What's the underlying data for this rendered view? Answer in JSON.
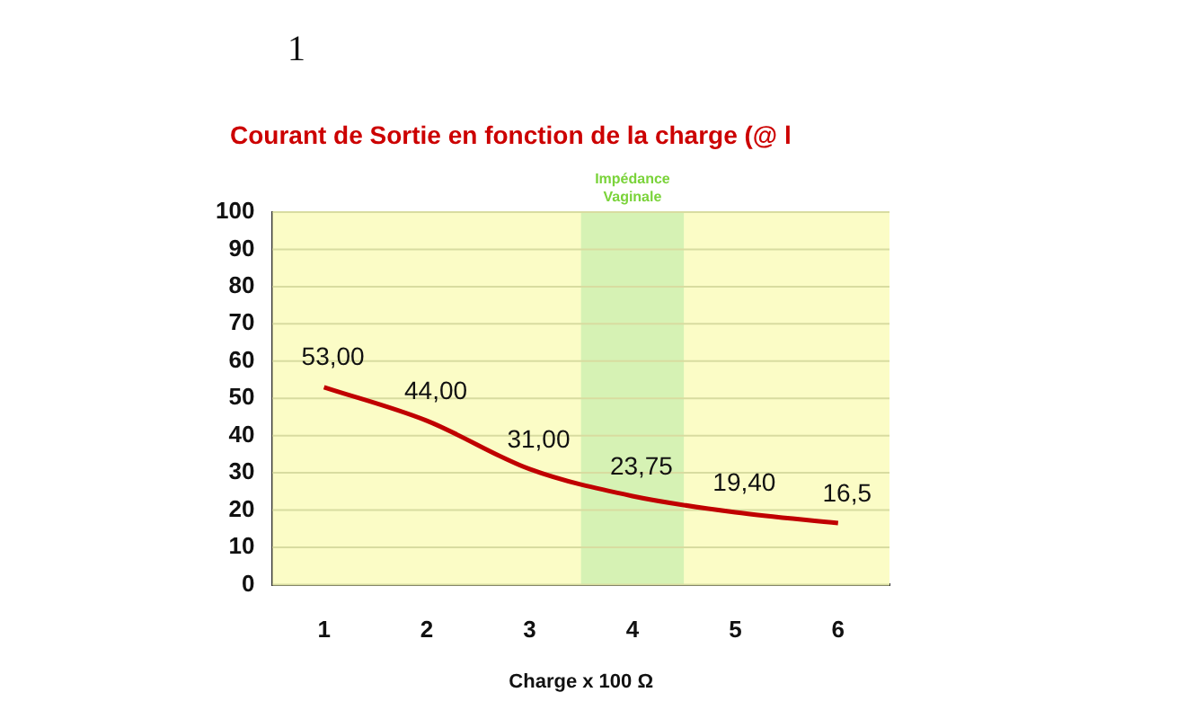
{
  "chart_data": {
    "type": "line",
    "title": "Courant de Sortie en fonction de la charge (@ l",
    "xlabel": "Charge x 100 Ω",
    "annotations": [
      "1"
    ],
    "x": [
      1,
      2,
      3,
      4,
      5,
      6
    ],
    "xlim": [
      0.5,
      6.5
    ],
    "xticks": [
      1,
      2,
      3,
      4,
      5,
      6
    ],
    "series": [
      {
        "color": "#c00000",
        "values": [
          53,
          44,
          31,
          23.75,
          19.4,
          16.5
        ],
        "value_labels": [
          "53,00",
          "44,00",
          "31,00",
          "23,75",
          "19,40",
          "16,5"
        ]
      }
    ],
    "ylim": [
      0,
      100
    ],
    "yticks": [
      0,
      10,
      20,
      30,
      40,
      50,
      60,
      70,
      80,
      90,
      100
    ],
    "grid": "y",
    "marker": "none",
    "line_style": "solid",
    "legend": false,
    "bands": [
      {
        "axis": "x",
        "from": 3.5,
        "to": 4.5,
        "label": "Impédance Vaginale",
        "color": "#d6f2b4"
      }
    ]
  }
}
